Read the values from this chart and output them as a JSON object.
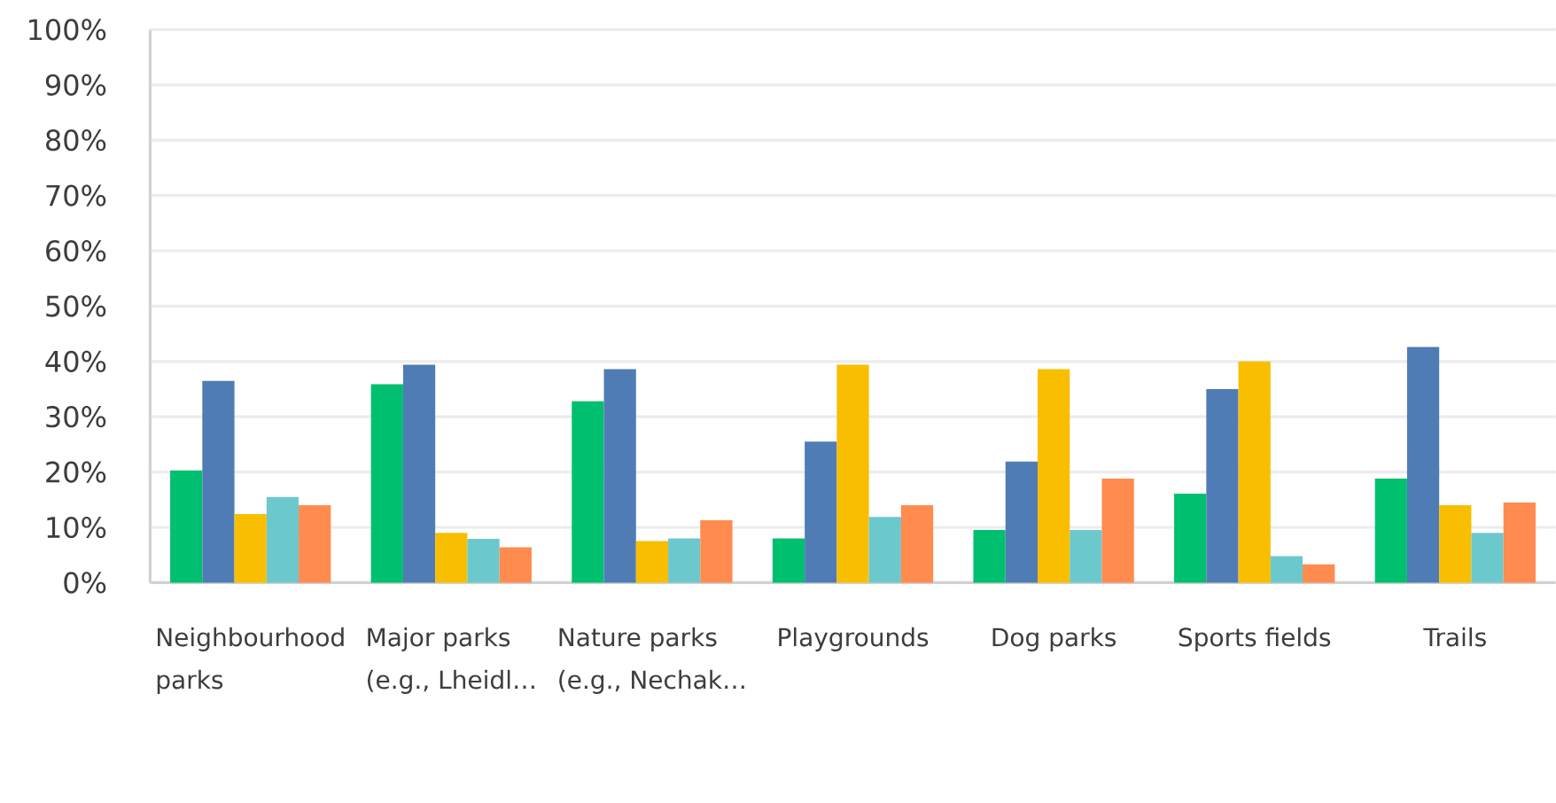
{
  "chart_data": {
    "type": "bar",
    "categories": [
      "Neighbourhood parks",
      "Major parks (e.g., Lheidl…",
      "Nature parks (e.g., Nechak…",
      "Playgrounds",
      "Dog parks",
      "Sports fields",
      "Trails"
    ],
    "series": [
      {
        "color": "#00bf6f",
        "values": [
          20.3,
          35.9,
          32.8,
          8.0,
          9.5,
          16.1,
          18.8
        ]
      },
      {
        "color": "#507cb6",
        "values": [
          36.5,
          39.4,
          38.6,
          25.5,
          21.9,
          35.0,
          42.6
        ]
      },
      {
        "color": "#f9be00",
        "values": [
          12.4,
          9.0,
          7.5,
          39.4,
          38.6,
          40.0,
          14.0
        ]
      },
      {
        "color": "#6bc8cd",
        "values": [
          15.5,
          7.9,
          8.0,
          11.9,
          9.5,
          4.8,
          9.0
        ]
      },
      {
        "color": "#ff8b4f",
        "values": [
          14.0,
          6.4,
          11.3,
          14.0,
          18.8,
          3.3,
          14.5
        ]
      }
    ],
    "ylim": [
      0,
      100
    ],
    "yticks": [
      {
        "value": 0,
        "label": "0%"
      },
      {
        "value": 10,
        "label": "10%"
      },
      {
        "value": 20,
        "label": "20%"
      },
      {
        "value": 30,
        "label": "30%"
      },
      {
        "value": 40,
        "label": "40%"
      },
      {
        "value": 50,
        "label": "50%"
      },
      {
        "value": 60,
        "label": "60%"
      },
      {
        "value": 70,
        "label": "70%"
      },
      {
        "value": 80,
        "label": "80%"
      },
      {
        "value": 90,
        "label": "90%"
      },
      {
        "value": 100,
        "label": "100%"
      }
    ],
    "grid": "y"
  }
}
